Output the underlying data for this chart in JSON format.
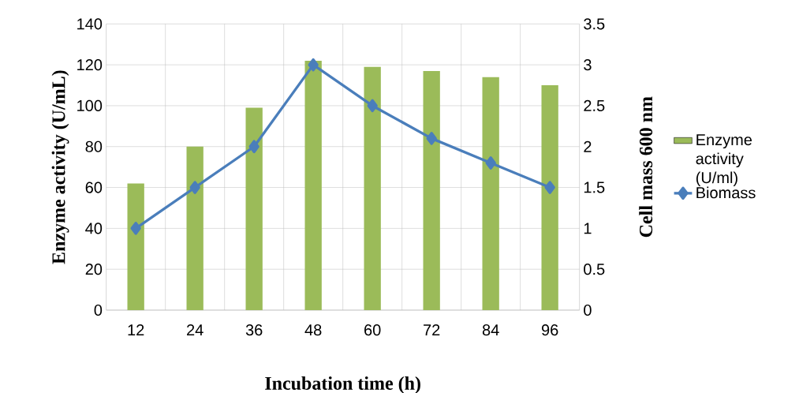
{
  "chart_data": {
    "type": "bar",
    "xlabel": "Incubation time (h)",
    "ylabel": "Enzyme activity (U/mL)",
    "y2label": "Cell mass  600 nm",
    "categories": [
      "12",
      "24",
      "36",
      "48",
      "60",
      "72",
      "84",
      "96"
    ],
    "series": [
      {
        "name": "Enzyme activity (U/ml)",
        "color": "#9bbb59",
        "values": [
          62,
          80,
          99,
          122,
          119,
          117,
          114,
          110
        ]
      },
      {
        "name": "Biomass",
        "type": "line",
        "axis": "y2",
        "color": "#4a7ebb",
        "marker": "diamond",
        "values": [
          1,
          1.5,
          2,
          3,
          2.5,
          2.1,
          1.8,
          1.5
        ]
      }
    ],
    "ylim": [
      0,
      140
    ],
    "yticks": [
      0,
      20,
      40,
      60,
      80,
      100,
      120,
      140
    ],
    "y2lim": [
      0,
      3.5
    ],
    "y2ticks": [
      0,
      0.5,
      1,
      1.5,
      2,
      2.5,
      3,
      3.5
    ],
    "grid": true,
    "legend": "right"
  }
}
